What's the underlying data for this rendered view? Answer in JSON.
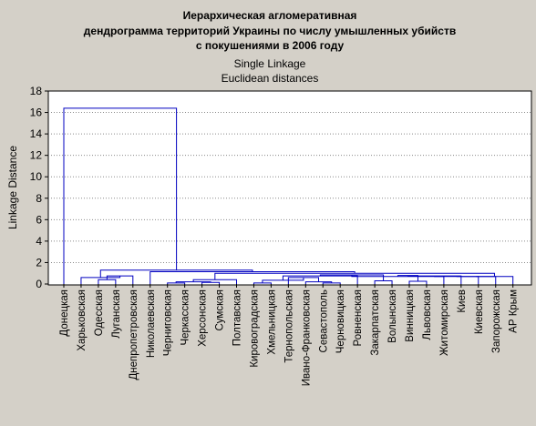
{
  "chart_data": {
    "type": "dendrogram",
    "title_lines": [
      "Иерархическая агломеративная",
      "дендрограмма территорий Украины по числу умышленных убийств",
      "с покушениями  в 2006 году"
    ],
    "subtitle_lines": [
      "Single Linkage",
      "Euclidean distances"
    ],
    "ylabel": "Linkage Distance",
    "ylim": [
      0,
      18
    ],
    "yticks": [
      0,
      2,
      4,
      6,
      8,
      10,
      12,
      14,
      16,
      18
    ],
    "grid": true,
    "categories": [
      "Донецкая",
      "Харьковская",
      "Одесская",
      "Луганская",
      "Днепропетровская",
      "Николаевская",
      "Черниговская",
      "Черкасская",
      "Херсонская",
      "Сумская",
      "Полтавская",
      "Кировоградская",
      "Хмельницкая",
      "Тернопольская",
      "Ивано-Франковская",
      "Севастополь",
      "Черновицкая",
      "Ровненская",
      "Закарпатская",
      "Волынская",
      "Винницкая",
      "Львовская",
      "Житомирская",
      "Киев",
      "Киевская",
      "Запорожская",
      "АР Крым"
    ],
    "merges": [
      {
        "a": 6,
        "b": 7,
        "height": 0.1
      },
      {
        "a": 8,
        "b": 9,
        "height": 0.15
      },
      {
        "a": 15,
        "b": 16,
        "height": 0.1
      },
      {
        "a": 11,
        "b": 12,
        "height": 0.1
      },
      {
        "a": 20,
        "b": 21,
        "height": 0.25
      },
      {
        "a": 18,
        "b": 19,
        "height": 0.3
      },
      {
        "a": 2,
        "b": 3,
        "height": 0.4
      },
      {
        "a": 14,
        "b": "m2",
        "height": 0.2
      },
      {
        "a": "m0",
        "b": "m1",
        "height": 0.2
      },
      {
        "a": "m8",
        "b": 10,
        "height": 0.4
      },
      {
        "a": 13,
        "b": "m7",
        "height": 0.6
      },
      {
        "a": "m3",
        "b": "m10",
        "height": 0.35
      },
      {
        "a": "m11",
        "b": 17,
        "height": 0.75
      },
      {
        "a": "m12",
        "b": "m5",
        "height": 0.85
      },
      {
        "a": "m13",
        "b": 22,
        "height": 0.7
      },
      {
        "a": "m14",
        "b": "m4",
        "height": 0.8
      },
      {
        "a": "m15",
        "b": 23,
        "height": 0.75
      },
      {
        "a": "m16",
        "b": 24,
        "height": 0.7
      },
      {
        "a": "m17",
        "b": 25,
        "height": 0.7
      },
      {
        "a": "m18",
        "b": 26,
        "height": 0.7
      },
      {
        "a": "m9",
        "b": "m19",
        "height": 1.0
      },
      {
        "a": 5,
        "b": "m20",
        "height": 1.15
      },
      {
        "a": "m6",
        "b": 4,
        "height": 0.75
      },
      {
        "a": 1,
        "b": "m22",
        "height": 0.6
      },
      {
        "a": "m23",
        "b": "m21",
        "height": 1.3
      },
      {
        "a": 0,
        "b": "m24",
        "height": 16.4
      }
    ]
  }
}
